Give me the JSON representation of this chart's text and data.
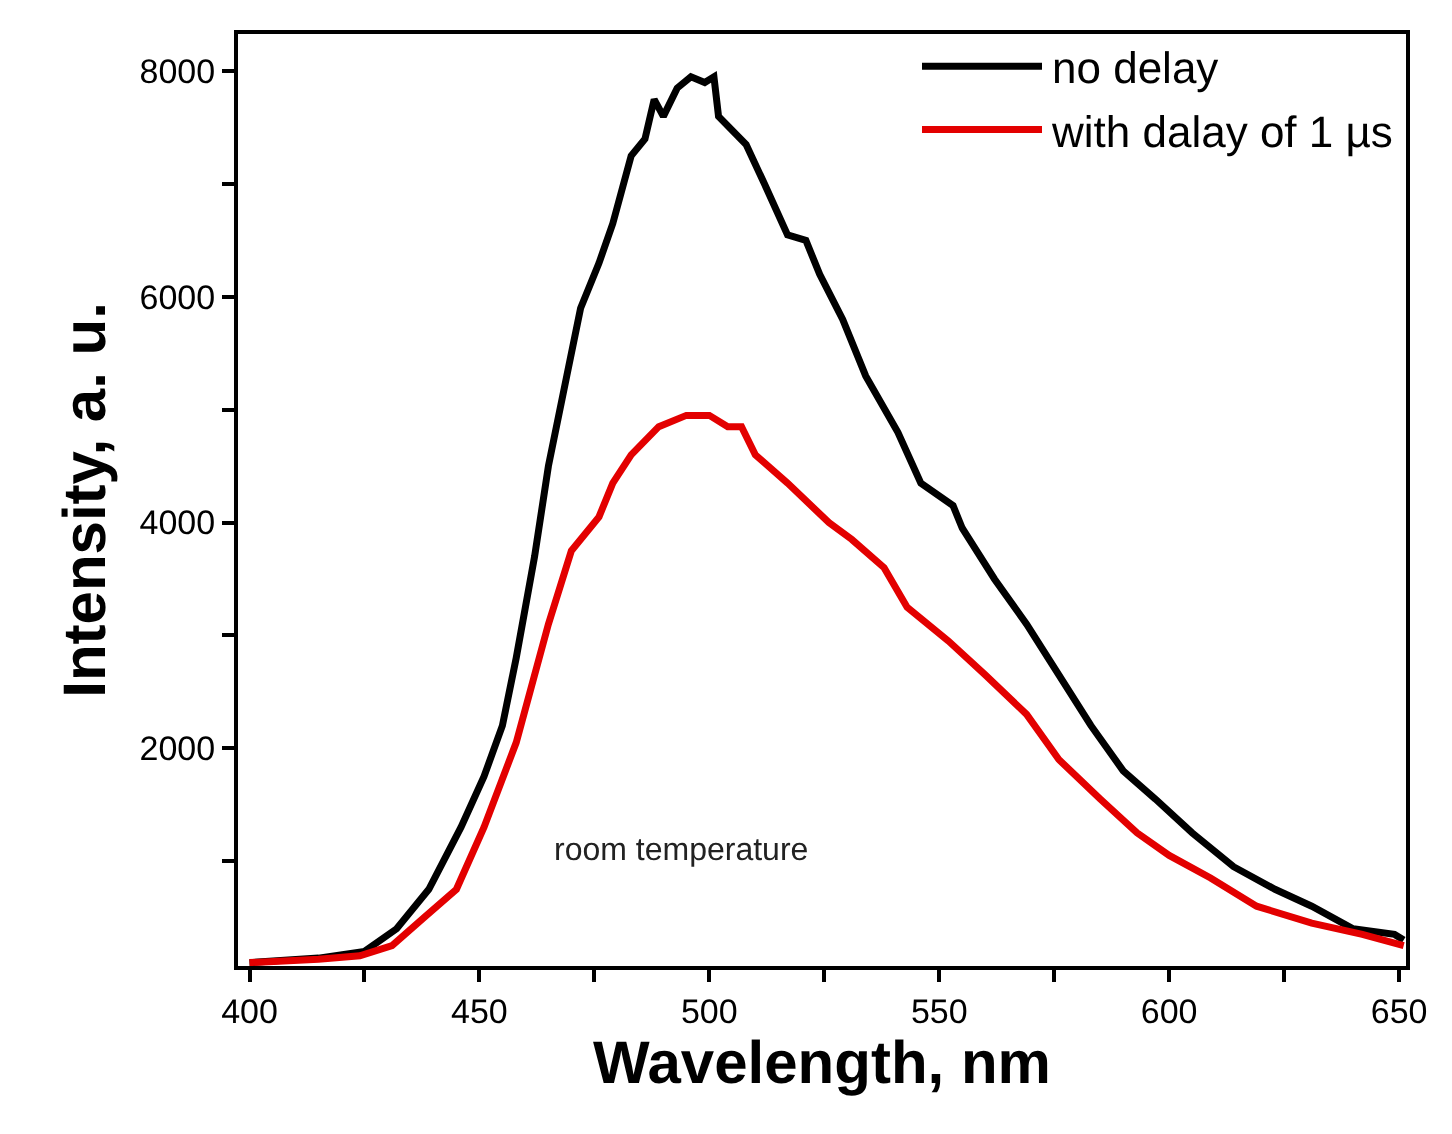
{
  "chart_data": {
    "type": "line",
    "xlabel": "Wavelength, nm",
    "ylabel": "Intensity, a. u.",
    "xlim": [
      397.5,
      651.5
    ],
    "ylim": [
      70,
      8330
    ],
    "xticks": [
      400,
      {
        "value": 425,
        "label": null
      },
      450,
      {
        "value": 475,
        "label": null
      },
      500,
      {
        "value": 525,
        "label": null
      },
      550,
      {
        "value": 575,
        "label": null
      },
      600,
      {
        "value": 625,
        "label": null
      },
      650
    ],
    "yticks": [
      {
        "value": 1000,
        "label": null
      },
      2000,
      {
        "value": 3000,
        "label": null
      },
      4000,
      {
        "value": 5000,
        "label": null
      },
      6000,
      {
        "value": 7000,
        "label": null
      },
      8000
    ],
    "legend": "top right",
    "marker": "none",
    "line_style": "solid",
    "annotations": [
      "room temperature"
    ],
    "series": [
      {
        "name": "no delay",
        "color": "#000000",
        "x": [
          400,
          415,
          425,
          432,
          439,
          446,
          451,
          455,
          458,
          462,
          465,
          469,
          472,
          476,
          479,
          483,
          486,
          488,
          490,
          493,
          496,
          499,
          501,
          502,
          508,
          512,
          517,
          521,
          524,
          529,
          534,
          541,
          546,
          553,
          555,
          562,
          569,
          576,
          583,
          590,
          597,
          605,
          614,
          623,
          631,
          640,
          649,
          651
        ],
        "values": [
          100,
          140,
          200,
          400,
          750,
          1300,
          1750,
          2200,
          2800,
          3700,
          4500,
          5300,
          5900,
          6300,
          6650,
          7250,
          7400,
          7750,
          7600,
          7850,
          7950,
          7900,
          7950,
          7600,
          7350,
          7000,
          6550,
          6500,
          6200,
          5800,
          5300,
          4800,
          4350,
          4150,
          3950,
          3500,
          3100,
          2650,
          2200,
          1800,
          1550,
          1250,
          950,
          750,
          600,
          400,
          350,
          300
        ]
      },
      {
        "name": "with dalay of 1 µs",
        "color": "#e30000",
        "x": [
          400,
          415,
          424,
          431,
          438,
          445,
          451,
          458,
          465,
          470,
          476,
          479,
          483,
          489,
          495,
          500,
          504,
          507,
          510,
          517,
          526,
          531,
          538,
          543,
          552,
          560,
          569,
          576,
          585,
          593,
          600,
          609,
          619,
          631,
          642,
          651
        ],
        "values": [
          100,
          130,
          160,
          250,
          500,
          750,
          1300,
          2050,
          3100,
          3750,
          4050,
          4350,
          4600,
          4850,
          4950,
          4950,
          4850,
          4850,
          4600,
          4350,
          4000,
          3850,
          3600,
          3250,
          2950,
          2650,
          2300,
          1900,
          1550,
          1250,
          1050,
          850,
          600,
          450,
          350,
          250
        ]
      }
    ]
  }
}
